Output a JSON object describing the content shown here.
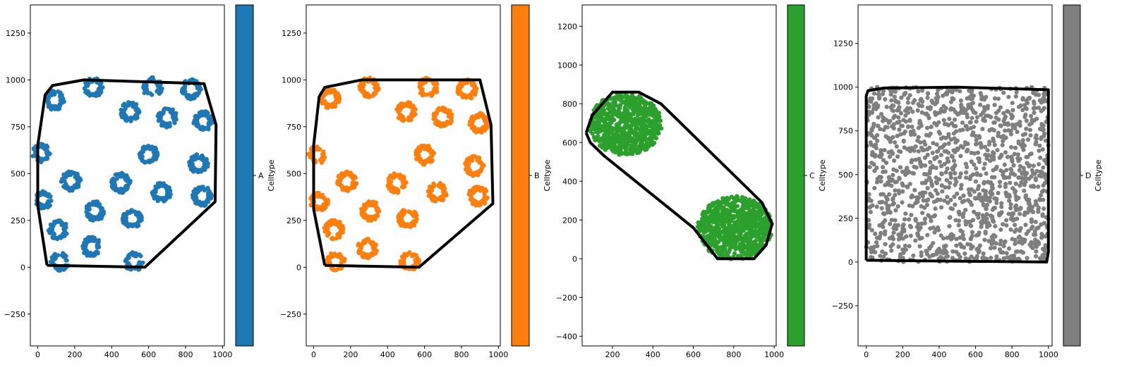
{
  "chart_data": [
    {
      "type": "scatter",
      "colorbar_label": "Celltype",
      "colorbar_tick": "A",
      "color": "#1f77b4",
      "xlim": [
        -40,
        1010
      ],
      "ylim": [
        -420,
        1400
      ],
      "xticks": [
        0,
        200,
        400,
        600,
        800,
        1000
      ],
      "yticks": [
        -250,
        0,
        250,
        500,
        750,
        1000,
        1250
      ],
      "hull": [
        [
          50,
          10
        ],
        [
          580,
          0
        ],
        [
          960,
          350
        ],
        [
          965,
          760
        ],
        [
          900,
          980
        ],
        [
          250,
          1000
        ],
        [
          80,
          970
        ],
        [
          40,
          920
        ],
        [
          0,
          650
        ],
        [
          0,
          330
        ],
        [
          50,
          10
        ]
      ],
      "clusters": [
        {
          "type": "ring",
          "cx": 90,
          "cy": 890,
          "r": 42,
          "n": 70
        },
        {
          "type": "ring",
          "cx": 300,
          "cy": 960,
          "r": 42,
          "n": 70
        },
        {
          "type": "ring",
          "cx": 620,
          "cy": 960,
          "r": 42,
          "n": 50
        },
        {
          "type": "ring",
          "cx": 830,
          "cy": 950,
          "r": 42,
          "n": 70
        },
        {
          "type": "ring",
          "cx": 500,
          "cy": 830,
          "r": 42,
          "n": 70
        },
        {
          "type": "ring",
          "cx": 700,
          "cy": 800,
          "r": 42,
          "n": 70
        },
        {
          "type": "ring",
          "cx": 895,
          "cy": 780,
          "r": 42,
          "n": 80
        },
        {
          "type": "ring",
          "cx": 20,
          "cy": 610,
          "r": 38,
          "n": 50
        },
        {
          "type": "ring",
          "cx": 600,
          "cy": 600,
          "r": 42,
          "n": 70
        },
        {
          "type": "ring",
          "cx": 870,
          "cy": 550,
          "r": 42,
          "n": 70
        },
        {
          "type": "ring",
          "cx": 180,
          "cy": 460,
          "r": 42,
          "n": 70
        },
        {
          "type": "ring",
          "cx": 450,
          "cy": 450,
          "r": 42,
          "n": 70
        },
        {
          "type": "ring",
          "cx": 670,
          "cy": 400,
          "r": 42,
          "n": 70
        },
        {
          "type": "ring",
          "cx": 890,
          "cy": 380,
          "r": 42,
          "n": 70
        },
        {
          "type": "ring",
          "cx": 30,
          "cy": 360,
          "r": 38,
          "n": 50
        },
        {
          "type": "ring",
          "cx": 310,
          "cy": 300,
          "r": 42,
          "n": 70
        },
        {
          "type": "ring",
          "cx": 510,
          "cy": 260,
          "r": 42,
          "n": 70
        },
        {
          "type": "ring",
          "cx": 110,
          "cy": 200,
          "r": 42,
          "n": 70
        },
        {
          "type": "ring",
          "cx": 290,
          "cy": 110,
          "r": 42,
          "n": 70
        },
        {
          "type": "ring",
          "cx": 120,
          "cy": 30,
          "r": 40,
          "n": 50
        },
        {
          "type": "ring",
          "cx": 520,
          "cy": 30,
          "r": 40,
          "n": 50
        }
      ]
    },
    {
      "type": "scatter",
      "colorbar_label": "Celltype",
      "colorbar_tick": "B",
      "color": "#ff7f0e",
      "xlim": [
        -40,
        1010
      ],
      "ylim": [
        -420,
        1400
      ],
      "xticks": [
        0,
        200,
        400,
        600,
        800,
        1000
      ],
      "yticks": [
        -250,
        0,
        250,
        500,
        750,
        1000,
        1250
      ],
      "hull": [
        [
          60,
          10
        ],
        [
          570,
          0
        ],
        [
          970,
          340
        ],
        [
          960,
          760
        ],
        [
          900,
          1000
        ],
        [
          260,
          1000
        ],
        [
          60,
          960
        ],
        [
          30,
          910
        ],
        [
          0,
          650
        ],
        [
          0,
          310
        ],
        [
          60,
          10
        ]
      ],
      "clusters": [
        {
          "type": "ring",
          "cx": 90,
          "cy": 900,
          "r": 42,
          "n": 70
        },
        {
          "type": "ring",
          "cx": 300,
          "cy": 960,
          "r": 42,
          "n": 70
        },
        {
          "type": "ring",
          "cx": 620,
          "cy": 960,
          "r": 42,
          "n": 50
        },
        {
          "type": "ring",
          "cx": 830,
          "cy": 950,
          "r": 42,
          "n": 70
        },
        {
          "type": "ring",
          "cx": 500,
          "cy": 830,
          "r": 42,
          "n": 70
        },
        {
          "type": "ring",
          "cx": 700,
          "cy": 800,
          "r": 42,
          "n": 70
        },
        {
          "type": "ring",
          "cx": 895,
          "cy": 770,
          "r": 42,
          "n": 80
        },
        {
          "type": "ring",
          "cx": 20,
          "cy": 600,
          "r": 38,
          "n": 50
        },
        {
          "type": "ring",
          "cx": 600,
          "cy": 600,
          "r": 42,
          "n": 70
        },
        {
          "type": "ring",
          "cx": 870,
          "cy": 540,
          "r": 42,
          "n": 70
        },
        {
          "type": "ring",
          "cx": 180,
          "cy": 460,
          "r": 42,
          "n": 70
        },
        {
          "type": "ring",
          "cx": 450,
          "cy": 450,
          "r": 42,
          "n": 70
        },
        {
          "type": "ring",
          "cx": 670,
          "cy": 400,
          "r": 42,
          "n": 70
        },
        {
          "type": "ring",
          "cx": 890,
          "cy": 380,
          "r": 42,
          "n": 70
        },
        {
          "type": "ring",
          "cx": 30,
          "cy": 350,
          "r": 38,
          "n": 50
        },
        {
          "type": "ring",
          "cx": 310,
          "cy": 300,
          "r": 42,
          "n": 70
        },
        {
          "type": "ring",
          "cx": 510,
          "cy": 260,
          "r": 42,
          "n": 70
        },
        {
          "type": "ring",
          "cx": 110,
          "cy": 200,
          "r": 42,
          "n": 70
        },
        {
          "type": "ring",
          "cx": 290,
          "cy": 100,
          "r": 42,
          "n": 70
        },
        {
          "type": "ring",
          "cx": 120,
          "cy": 30,
          "r": 40,
          "n": 50
        },
        {
          "type": "ring",
          "cx": 520,
          "cy": 30,
          "r": 40,
          "n": 50
        }
      ]
    },
    {
      "type": "scatter",
      "colorbar_label": "Celltype",
      "colorbar_tick": "C",
      "color": "#2ca02c",
      "xlim": [
        50,
        1010
      ],
      "ylim": [
        -450,
        1310
      ],
      "xticks": [
        200,
        400,
        600,
        800,
        1000
      ],
      "yticks": [
        -400,
        -200,
        0,
        200,
        400,
        600,
        800,
        1000,
        1200
      ],
      "hull": [
        [
          70,
          650
        ],
        [
          100,
          740
        ],
        [
          200,
          860
        ],
        [
          330,
          860
        ],
        [
          440,
          800
        ],
        [
          940,
          290
        ],
        [
          990,
          180
        ],
        [
          960,
          70
        ],
        [
          900,
          0
        ],
        [
          720,
          0
        ],
        [
          600,
          160
        ],
        [
          160,
          530
        ],
        [
          90,
          600
        ],
        [
          70,
          650
        ]
      ],
      "clusters": [
        {
          "type": "blob",
          "cx": 265,
          "cy": 695,
          "rx": 180,
          "ry": 160,
          "n": 700
        },
        {
          "type": "blob",
          "cx": 805,
          "cy": 160,
          "rx": 185,
          "ry": 165,
          "n": 800
        }
      ]
    },
    {
      "type": "scatter",
      "colorbar_label": "Celltype",
      "colorbar_tick": "D",
      "color": "#7f7f7f",
      "xlim": [
        -45,
        1020
      ],
      "ylim": [
        -480,
        1470
      ],
      "xticks": [
        0,
        200,
        400,
        600,
        800,
        1000
      ],
      "yticks": [
        -250,
        0,
        250,
        500,
        750,
        1000,
        1250
      ],
      "hull": [
        [
          0,
          10
        ],
        [
          990,
          0
        ],
        [
          1000,
          60
        ],
        [
          1000,
          985
        ],
        [
          500,
          1000
        ],
        [
          100,
          995
        ],
        [
          10,
          980
        ],
        [
          0,
          950
        ],
        [
          0,
          10
        ]
      ],
      "clusters": [
        {
          "type": "uniform",
          "x0": 0,
          "x1": 1000,
          "y0": 0,
          "y1": 1000,
          "n": 1400
        }
      ]
    }
  ]
}
